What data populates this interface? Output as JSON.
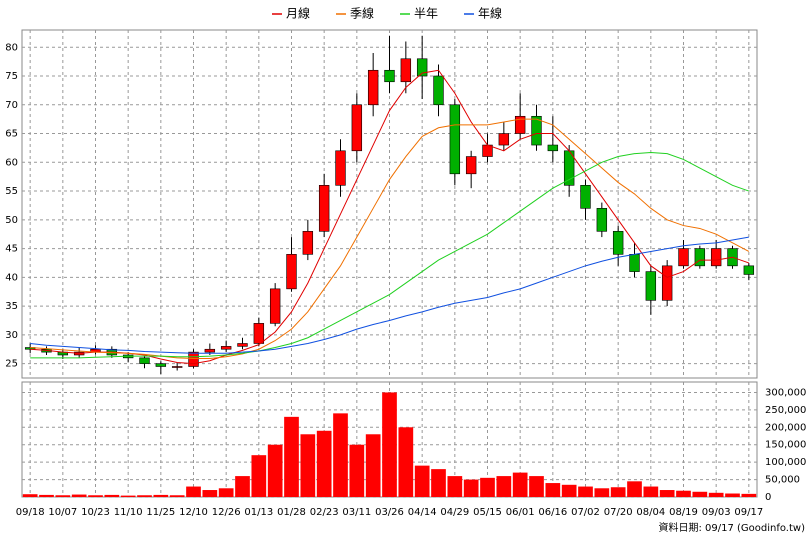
{
  "chart_data": [
    {
      "type": "candlestick",
      "categories": [
        "09/18",
        null,
        "10/07",
        null,
        "10/23",
        null,
        "11/10",
        null,
        "11/25",
        null,
        "12/10",
        null,
        "12/26",
        null,
        "01/13",
        null,
        "01/28",
        null,
        "02/23",
        null,
        "03/11",
        null,
        "03/26",
        null,
        "04/14",
        null,
        "04/29",
        null,
        "05/15",
        null,
        "06/01",
        null,
        "06/16",
        null,
        "07/02",
        null,
        "07/20",
        null,
        "08/04",
        null,
        "08/19",
        null,
        "09/03",
        null,
        "09/17"
      ],
      "open": [
        27.8,
        27.5,
        27,
        26.5,
        27,
        27.5,
        26.5,
        26,
        25,
        24.5,
        24.5,
        27,
        27.5,
        28,
        28.5,
        32,
        38,
        44,
        48,
        56,
        62,
        70,
        76,
        74,
        78,
        75,
        70,
        58,
        61,
        63,
        65,
        68,
        63,
        62,
        56,
        52,
        48,
        44,
        41,
        36,
        42,
        45,
        42,
        45,
        42
      ],
      "high": [
        28.5,
        28,
        27.5,
        27.8,
        28.2,
        28,
        27,
        26.3,
        25.4,
        25.2,
        27.5,
        28.5,
        29,
        29.5,
        33,
        39,
        47,
        50,
        58,
        64,
        72,
        79,
        82,
        81,
        82,
        77,
        71,
        62,
        65,
        67,
        72,
        70,
        68,
        63,
        57,
        53,
        49,
        46,
        42,
        43,
        46.5,
        45.5,
        46.5,
        45.5,
        42.5
      ],
      "low": [
        26.8,
        26.5,
        25.8,
        26,
        26.6,
        26,
        25.3,
        24.2,
        23.2,
        23.8,
        24.2,
        26.5,
        27,
        27.5,
        28,
        31.5,
        37.5,
        43,
        47,
        54,
        60,
        68,
        72,
        72,
        71,
        68,
        56,
        55.5,
        60,
        62,
        64,
        62,
        60,
        54,
        50,
        47,
        42,
        40,
        33.5,
        35,
        41.5,
        41.5,
        41.5,
        41.5,
        39.5
      ],
      "close": [
        27.5,
        27,
        26.5,
        27,
        27.5,
        26.5,
        26,
        25,
        24.5,
        24.5,
        27,
        27.5,
        28,
        28.5,
        32,
        38,
        44,
        48,
        56,
        62,
        70,
        76,
        74,
        78,
        75,
        70,
        58,
        61,
        63,
        65,
        68,
        63,
        62,
        56,
        52,
        48,
        44,
        41,
        36,
        42,
        45,
        42,
        45,
        42,
        40.5
      ],
      "up_color": "#ff0000",
      "down_color": "#00b000",
      "series": [
        {
          "name": "月線",
          "color": "#e00000",
          "values": [
            27.5,
            27.3,
            27,
            26.8,
            27,
            27,
            26.8,
            26.5,
            25.8,
            25.2,
            25,
            25.5,
            26.5,
            27.3,
            28.3,
            30.5,
            34,
            39,
            45,
            51,
            57,
            63,
            69,
            73,
            75.5,
            76,
            72,
            67,
            63,
            62,
            64,
            65,
            65,
            62,
            58,
            54,
            50,
            46,
            42,
            40,
            41,
            43,
            43,
            43.5,
            42.5
          ]
        },
        {
          "name": "季線",
          "color": "#f07000",
          "values": [
            27.8,
            27.6,
            27.4,
            27.2,
            27,
            26.9,
            26.8,
            26.6,
            26.3,
            26,
            25.9,
            25.9,
            26.2,
            26.7,
            27.5,
            29,
            31,
            34,
            38,
            42,
            47,
            52,
            57,
            61,
            64.5,
            66,
            66.5,
            66.5,
            66.5,
            67,
            67.5,
            67.5,
            66.5,
            64,
            61.5,
            59,
            56.5,
            54.5,
            52,
            50,
            49,
            48.5,
            47.5,
            46,
            44.5
          ]
        },
        {
          "name": "半年",
          "color": "#20d020",
          "values": [
            26,
            26,
            26,
            26,
            26.1,
            26.2,
            26.3,
            26.3,
            26.3,
            26.2,
            26.2,
            26.3,
            26.5,
            26.8,
            27.2,
            27.8,
            28.5,
            29.5,
            31,
            32.5,
            34,
            35.5,
            37,
            39,
            41,
            43,
            44.5,
            46,
            47.5,
            49.5,
            51.5,
            53.5,
            55.5,
            57,
            58.5,
            60,
            61,
            61.5,
            61.7,
            61.5,
            60.5,
            59,
            57.5,
            56,
            55
          ]
        },
        {
          "name": "年線",
          "color": "#1050e0",
          "values": [
            28.5,
            28.2,
            28,
            27.8,
            27.6,
            27.4,
            27.3,
            27.1,
            27,
            26.9,
            26.8,
            26.8,
            26.8,
            27,
            27.2,
            27.5,
            28,
            28.5,
            29.2,
            30,
            31,
            31.8,
            32.5,
            33.3,
            34,
            34.8,
            35.5,
            36,
            36.5,
            37.3,
            38,
            39,
            40,
            41,
            42,
            42.8,
            43.5,
            44,
            44.5,
            45,
            45.5,
            45.8,
            46,
            46.5,
            47
          ]
        }
      ],
      "ylim": [
        22.5,
        83
      ],
      "yticks": [
        25,
        30,
        35,
        40,
        45,
        50,
        55,
        60,
        65,
        70,
        75,
        80
      ],
      "grid": true
    },
    {
      "type": "bar",
      "values": [
        8000,
        6000,
        5000,
        7000,
        5000,
        6000,
        4000,
        5000,
        6000,
        5000,
        30000,
        20000,
        25000,
        60000,
        120000,
        150000,
        230000,
        180000,
        190000,
        240000,
        150000,
        180000,
        300000,
        200000,
        90000,
        80000,
        60000,
        50000,
        55000,
        60000,
        70000,
        60000,
        40000,
        35000,
        30000,
        25000,
        28000,
        45000,
        30000,
        20000,
        18000,
        15000,
        12000,
        10000,
        9000
      ],
      "color": "#ff0000",
      "ylim": [
        0,
        330000
      ],
      "yticks": [
        0,
        {
          "value": 50000,
          "label": "50,000"
        },
        {
          "value": 100000,
          "label": "100,000"
        },
        {
          "value": 150000,
          "label": "150,000"
        },
        {
          "value": 200000,
          "label": "200,000"
        },
        {
          "value": 250000,
          "label": "250,000"
        },
        {
          "value": 300000,
          "label": "300,000"
        }
      ],
      "grid": true,
      "source": "資料日期: 09/17 (Goodinfo.tw)"
    }
  ]
}
